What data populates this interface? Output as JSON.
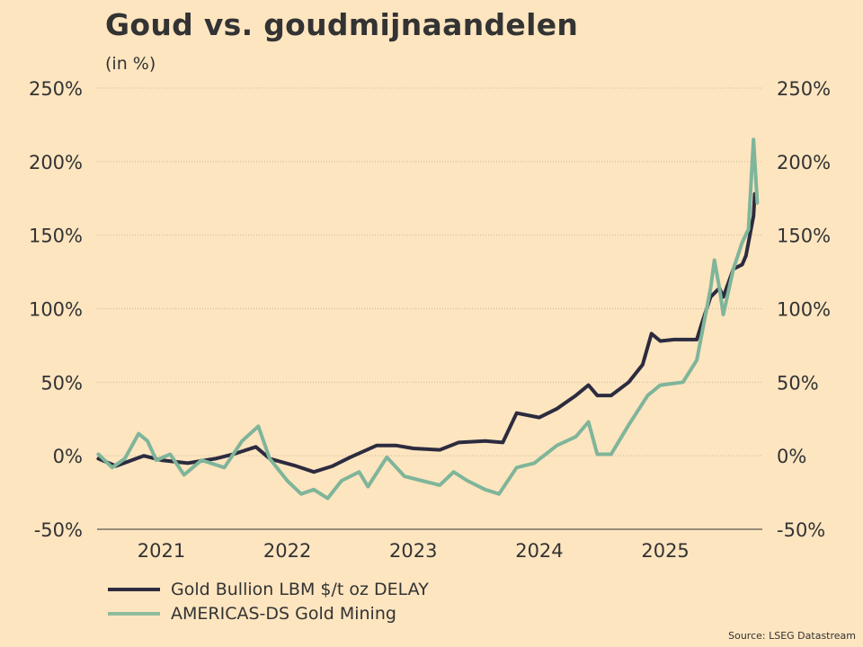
{
  "chart_data": {
    "type": "line",
    "title": "Goud vs. goudmijnaandelen",
    "subtitle": "(in %)",
    "xlabel": "",
    "ylabel": "",
    "xlim": [
      2020.49,
      2025.77
    ],
    "ylim": [
      -50,
      250
    ],
    "y_ticks": [
      250,
      200,
      150,
      100,
      50,
      0,
      -50
    ],
    "y_tick_labels": [
      "250%",
      "200%",
      "150%",
      "100%",
      "50%",
      "0%",
      "-50%"
    ],
    "x_ticks": [
      2021,
      2022,
      2023,
      2024,
      2025
    ],
    "x_tick_labels": [
      "2021",
      "2022",
      "2023",
      "2024",
      "2025"
    ],
    "grid": "horizontal-dotted",
    "legend_position": "bottom-left",
    "series": [
      {
        "name": "Gold Bullion LBM $/t oz DELAY",
        "color": "#2c2b3f",
        "x": [
          2020.5,
          2020.64,
          2020.86,
          2021.0,
          2021.21,
          2021.43,
          2021.57,
          2021.75,
          2021.86,
          2022.07,
          2022.21,
          2022.36,
          2022.5,
          2022.71,
          2022.86,
          2023.0,
          2023.21,
          2023.36,
          2023.57,
          2023.71,
          2023.82,
          2024.0,
          2024.14,
          2024.29,
          2024.39,
          2024.46,
          2024.57,
          2024.71,
          2024.82,
          2024.89,
          2024.96,
          2025.07,
          2025.25,
          2025.29,
          2025.36,
          2025.43,
          2025.46,
          2025.54,
          2025.61,
          2025.64,
          2025.7,
          2025.71
        ],
        "values": [
          -2,
          -7,
          0,
          -3,
          -5,
          -2,
          1,
          6,
          -2,
          -7,
          -11,
          -7,
          -1,
          7,
          7,
          5,
          4,
          9,
          10,
          9,
          29,
          26,
          32,
          41,
          48,
          41,
          41,
          50,
          62,
          83,
          78,
          79,
          79,
          90,
          108,
          114,
          108,
          127,
          130,
          136,
          163,
          178
        ]
      },
      {
        "name": "AMERICAS-DS Gold Mining",
        "color": "#7fb59a",
        "x": [
          2020.5,
          2020.61,
          2020.71,
          2020.82,
          2020.89,
          2020.96,
          2021.07,
          2021.18,
          2021.32,
          2021.5,
          2021.64,
          2021.77,
          2021.86,
          2022.0,
          2022.11,
          2022.21,
          2022.32,
          2022.43,
          2022.57,
          2022.64,
          2022.79,
          2022.93,
          2023.07,
          2023.21,
          2023.32,
          2023.43,
          2023.57,
          2023.68,
          2023.82,
          2023.96,
          2024.14,
          2024.29,
          2024.39,
          2024.46,
          2024.57,
          2024.71,
          2024.86,
          2024.96,
          2025.14,
          2025.25,
          2025.36,
          2025.39,
          2025.43,
          2025.46,
          2025.54,
          2025.61,
          2025.66,
          2025.7,
          2025.73
        ],
        "values": [
          1,
          -8,
          -2,
          15,
          10,
          -3,
          1,
          -13,
          -3,
          -8,
          10,
          20,
          -2,
          -17,
          -26,
          -23,
          -29,
          -17,
          -11,
          -21,
          -1,
          -14,
          -17,
          -20,
          -11,
          -17,
          -23,
          -26,
          -8,
          -5,
          7,
          13,
          23,
          1,
          1,
          21,
          41,
          48,
          50,
          65,
          114,
          133,
          114,
          96,
          127,
          145,
          154,
          215,
          172
        ]
      }
    ],
    "legend": [
      "Gold Bullion LBM $/t oz DELAY",
      "AMERICAS-DS Gold Mining"
    ],
    "source": "Source: LSEG Datastream"
  }
}
